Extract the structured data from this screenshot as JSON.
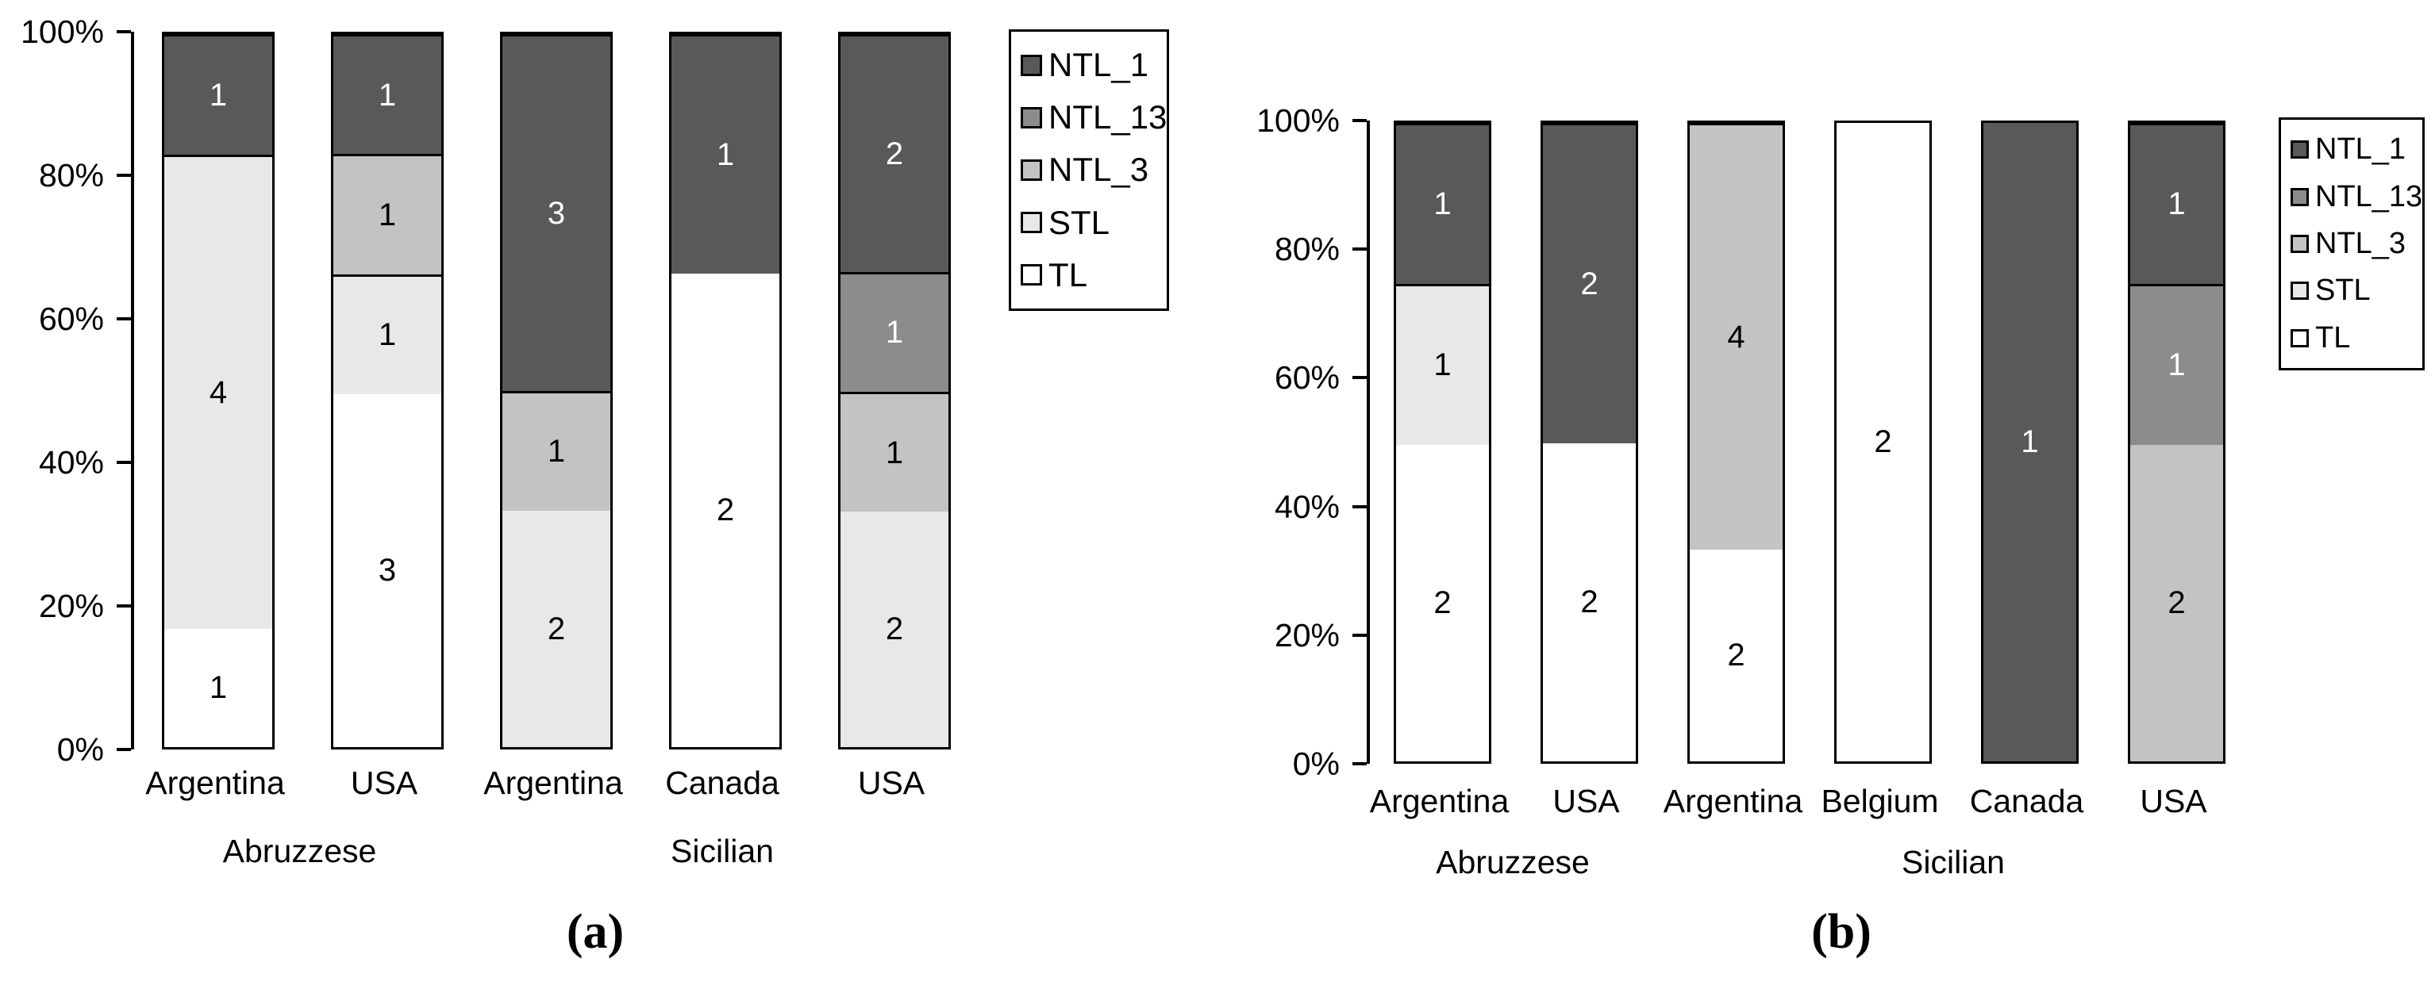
{
  "page": {
    "background": "#ffffff"
  },
  "captions": {
    "a": "(a)",
    "b": "(b)"
  },
  "colors": {
    "NTL_1": "#595959",
    "NTL_13": "#8c8c8c",
    "NTL_3": "#c3c3c3",
    "STL": "#e8e8e8",
    "TL": "#ffffff"
  },
  "stack_order_bottom_to_top": [
    "TL",
    "STL",
    "NTL_3",
    "NTL_13",
    "NTL_1"
  ],
  "chart_data": [
    {
      "id": "a",
      "type": "bar",
      "stacked": true,
      "units": "percent",
      "title": "",
      "xlabel": "",
      "ylabel": "",
      "ylim": [
        0,
        100
      ],
      "grid": false,
      "y_ticks": [
        "0%",
        "20%",
        "40%",
        "60%",
        "80%",
        "100%"
      ],
      "legend_position": "top-right",
      "legend": [
        "NTL_1",
        "NTL_13",
        "NTL_3",
        "STL",
        "TL"
      ],
      "categories": [
        "Argentina",
        "USA",
        "Argentina",
        "Canada",
        "USA"
      ],
      "group_labels": [
        {
          "label": "Abruzzese",
          "bars": [
            0,
            1
          ]
        },
        {
          "label": "Sicilian",
          "bars": [
            2,
            3,
            4
          ]
        }
      ],
      "series": [
        {
          "name": "NTL_1",
          "values": [
            1,
            1,
            3,
            1,
            2
          ]
        },
        {
          "name": "NTL_13",
          "values": [
            0,
            0,
            0,
            0,
            1
          ]
        },
        {
          "name": "NTL_3",
          "values": [
            0,
            1,
            1,
            0,
            1
          ]
        },
        {
          "name": "STL",
          "values": [
            4,
            1,
            2,
            0,
            2
          ]
        },
        {
          "name": "TL",
          "values": [
            1,
            3,
            0,
            2,
            0
          ]
        }
      ],
      "bar_totals": [
        6,
        6,
        6,
        3,
        6
      ],
      "caption": "(a)"
    },
    {
      "id": "b",
      "type": "bar",
      "stacked": true,
      "units": "percent",
      "title": "",
      "xlabel": "",
      "ylabel": "",
      "ylim": [
        0,
        100
      ],
      "grid": false,
      "y_ticks": [
        "0%",
        "20%",
        "40%",
        "60%",
        "80%",
        "100%"
      ],
      "legend_position": "top-right",
      "legend": [
        "NTL_1",
        "NTL_13",
        "NTL_3",
        "STL",
        "TL"
      ],
      "categories": [
        "Argentina",
        "USA",
        "Argentina",
        "Belgium",
        "Canada",
        "USA"
      ],
      "group_labels": [
        {
          "label": "Abruzzese",
          "bars": [
            0,
            1
          ]
        },
        {
          "label": "Sicilian",
          "bars": [
            2,
            3,
            4,
            5
          ]
        }
      ],
      "series": [
        {
          "name": "NTL_1",
          "values": [
            1,
            2,
            0,
            0,
            1,
            1
          ]
        },
        {
          "name": "NTL_13",
          "values": [
            0,
            0,
            0,
            0,
            0,
            1
          ]
        },
        {
          "name": "NTL_3",
          "values": [
            0,
            0,
            4,
            0,
            0,
            2
          ]
        },
        {
          "name": "STL",
          "values": [
            1,
            0,
            0,
            0,
            0,
            0
          ]
        },
        {
          "name": "TL",
          "values": [
            2,
            2,
            2,
            2,
            0,
            0
          ]
        }
      ],
      "bar_totals": [
        4,
        4,
        6,
        2,
        1,
        4
      ],
      "caption": "(b)"
    }
  ]
}
